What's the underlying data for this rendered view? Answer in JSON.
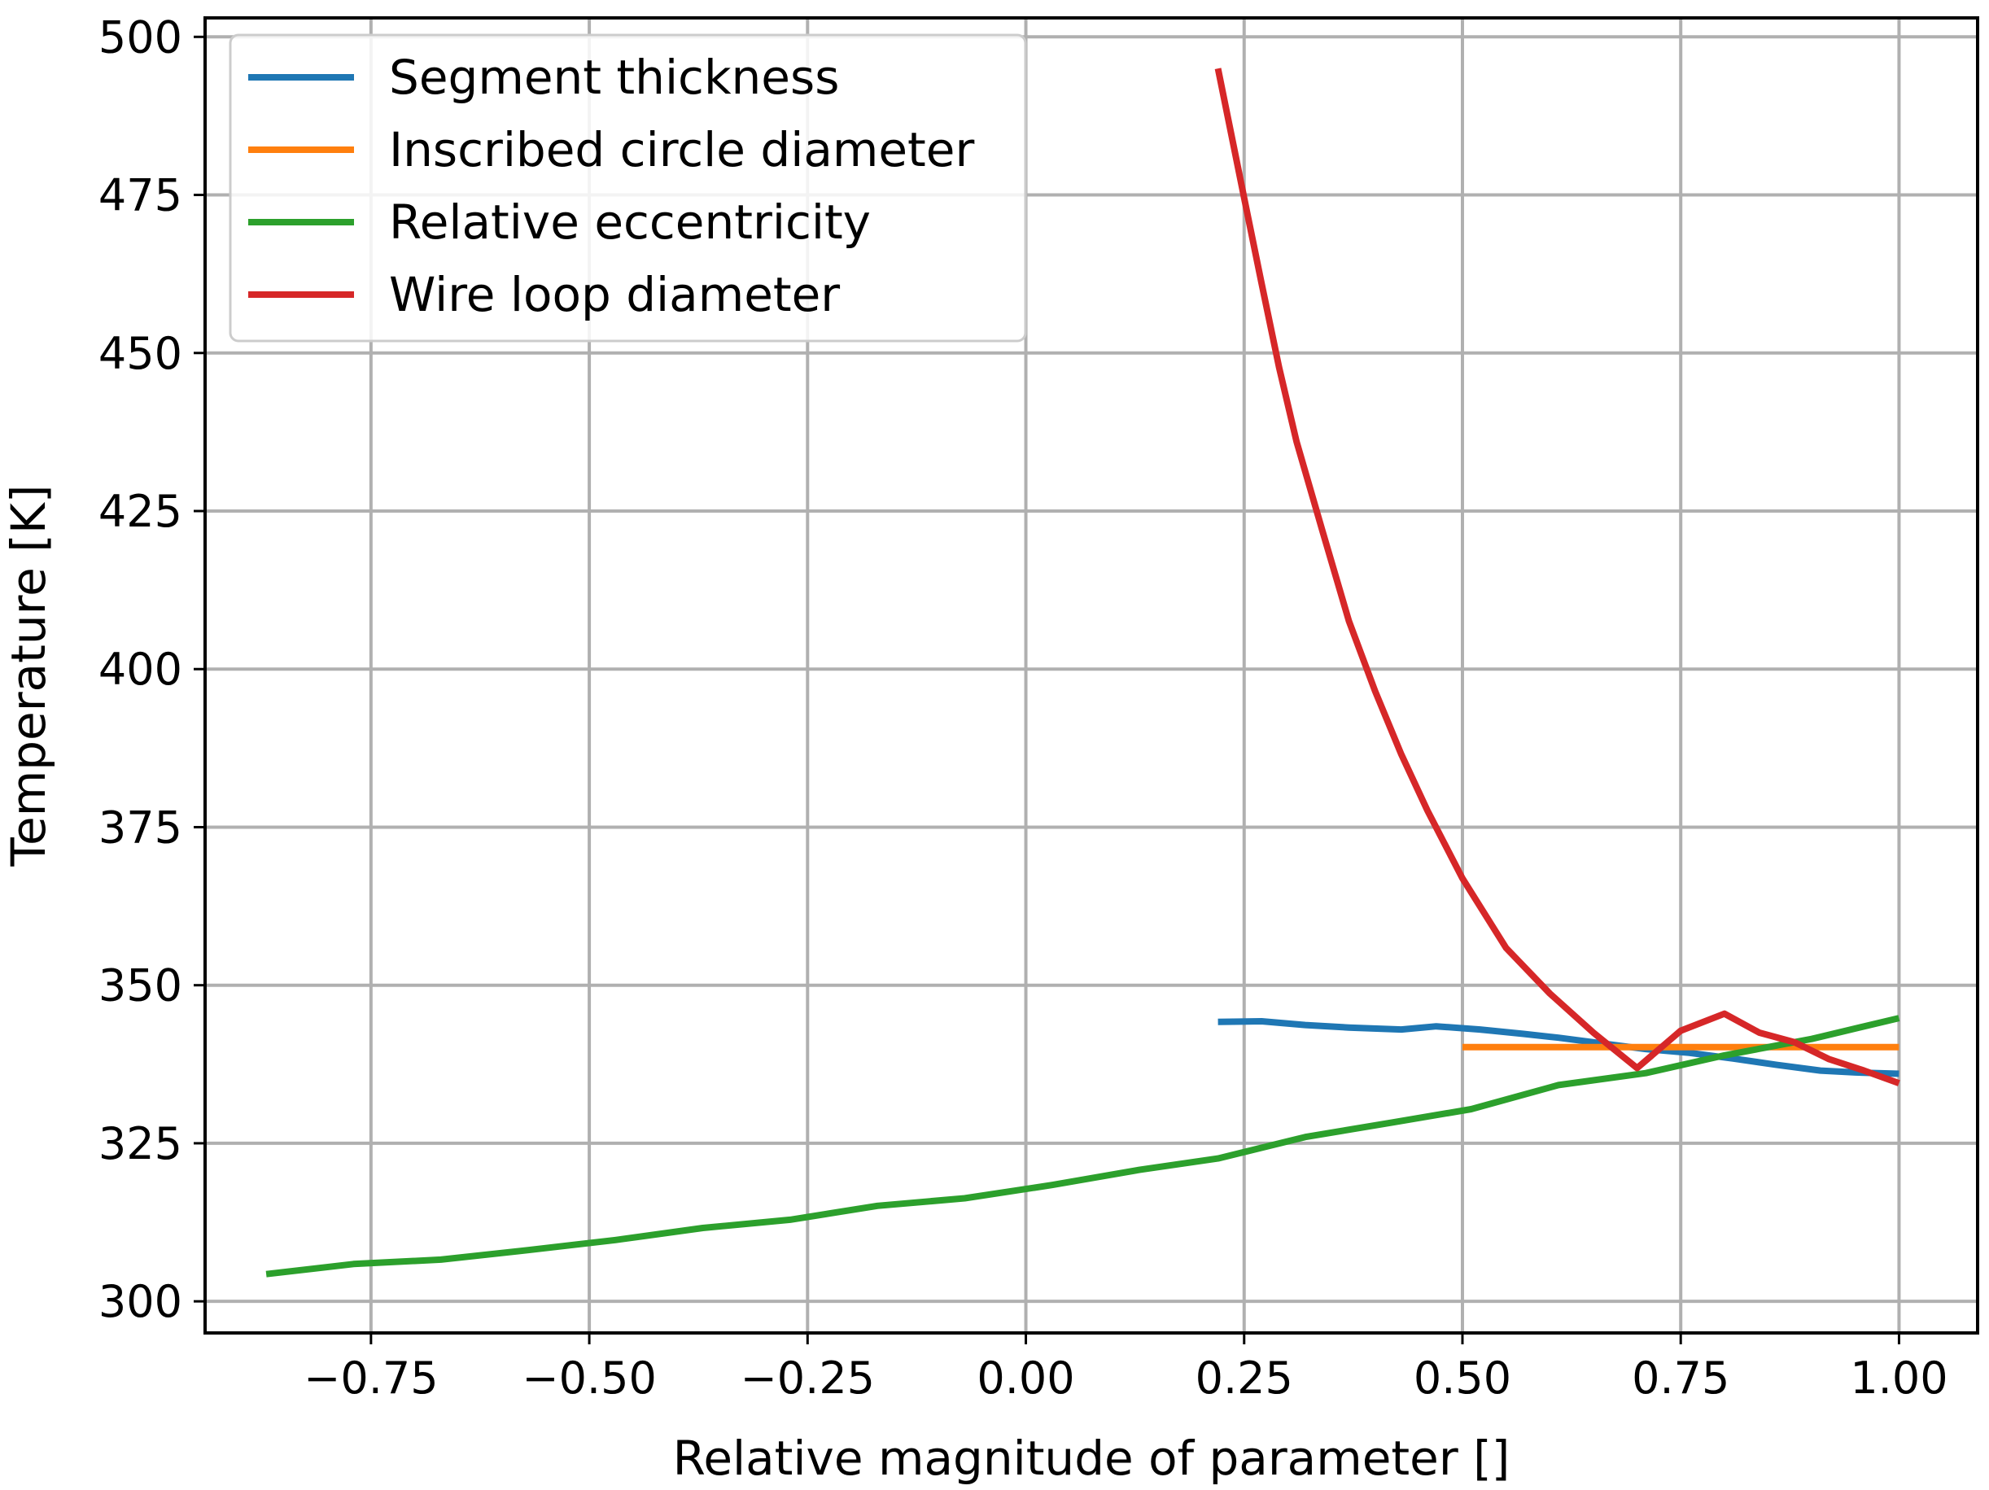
{
  "chart_data": {
    "type": "line",
    "title": "",
    "xlabel": "Relative magnitude of parameter []",
    "ylabel": "Temperature [K]",
    "xlim": [
      -0.94,
      1.09
    ],
    "ylim": [
      295,
      503
    ],
    "grid": true,
    "legend_position": "top-left",
    "x_ticks": [
      -0.75,
      -0.5,
      -0.25,
      0.0,
      0.25,
      0.5,
      0.75,
      1.0
    ],
    "x_tick_labels": [
      "−0.75",
      "−0.50",
      "−0.25",
      "0.00",
      "0.25",
      "0.50",
      "0.75",
      "1.00"
    ],
    "y_ticks": [
      300,
      325,
      350,
      375,
      400,
      425,
      450,
      475,
      500
    ],
    "y_tick_labels": [
      "300",
      "325",
      "350",
      "375",
      "400",
      "425",
      "450",
      "475",
      "500"
    ],
    "series": [
      {
        "name": "Segment thickness",
        "color": "#1f77b4",
        "x": [
          0.22,
          0.27,
          0.32,
          0.37,
          0.43,
          0.47,
          0.52,
          0.57,
          0.61,
          0.66,
          0.71,
          0.76,
          0.81,
          0.86,
          0.91,
          0.95,
          1.0
        ],
        "y": [
          344.2,
          344.3,
          343.7,
          343.3,
          343.0,
          343.5,
          343.0,
          342.3,
          341.7,
          340.8,
          339.9,
          339.3,
          338.4,
          337.4,
          336.5,
          336.2,
          336.0
        ]
      },
      {
        "name": "Inscribed circle diameter",
        "color": "#ff7f0e",
        "x": [
          0.5,
          1.0
        ],
        "y": [
          340.2,
          340.2
        ]
      },
      {
        "name": "Relative eccentricity",
        "color": "#2ca02c",
        "x": [
          -0.87,
          -0.77,
          -0.67,
          -0.57,
          -0.47,
          -0.37,
          -0.27,
          -0.17,
          -0.07,
          0.03,
          0.13,
          0.22,
          0.32,
          0.42,
          0.51,
          0.61,
          0.71,
          0.8,
          0.9,
          1.0
        ],
        "y": [
          304.3,
          305.9,
          306.6,
          308.1,
          309.7,
          311.6,
          312.9,
          315.1,
          316.3,
          318.4,
          320.8,
          322.6,
          326.0,
          328.3,
          330.4,
          334.2,
          336.1,
          338.9,
          341.5,
          344.8
        ]
      },
      {
        "name": "Wire loop diameter",
        "color": "#d62728",
        "x": [
          0.22,
          0.25,
          0.27,
          0.29,
          0.31,
          0.34,
          0.37,
          0.4,
          0.43,
          0.46,
          0.5,
          0.55,
          0.6,
          0.65,
          0.7,
          0.75,
          0.8,
          0.84,
          0.88,
          0.92,
          0.96,
          1.0
        ],
        "y": [
          495.0,
          474.5,
          461.0,
          447.7,
          436.0,
          421.7,
          407.6,
          396.5,
          386.5,
          377.6,
          366.9,
          355.9,
          348.7,
          342.5,
          336.9,
          342.8,
          345.5,
          342.5,
          341.0,
          338.3,
          336.5,
          334.5
        ]
      }
    ]
  }
}
